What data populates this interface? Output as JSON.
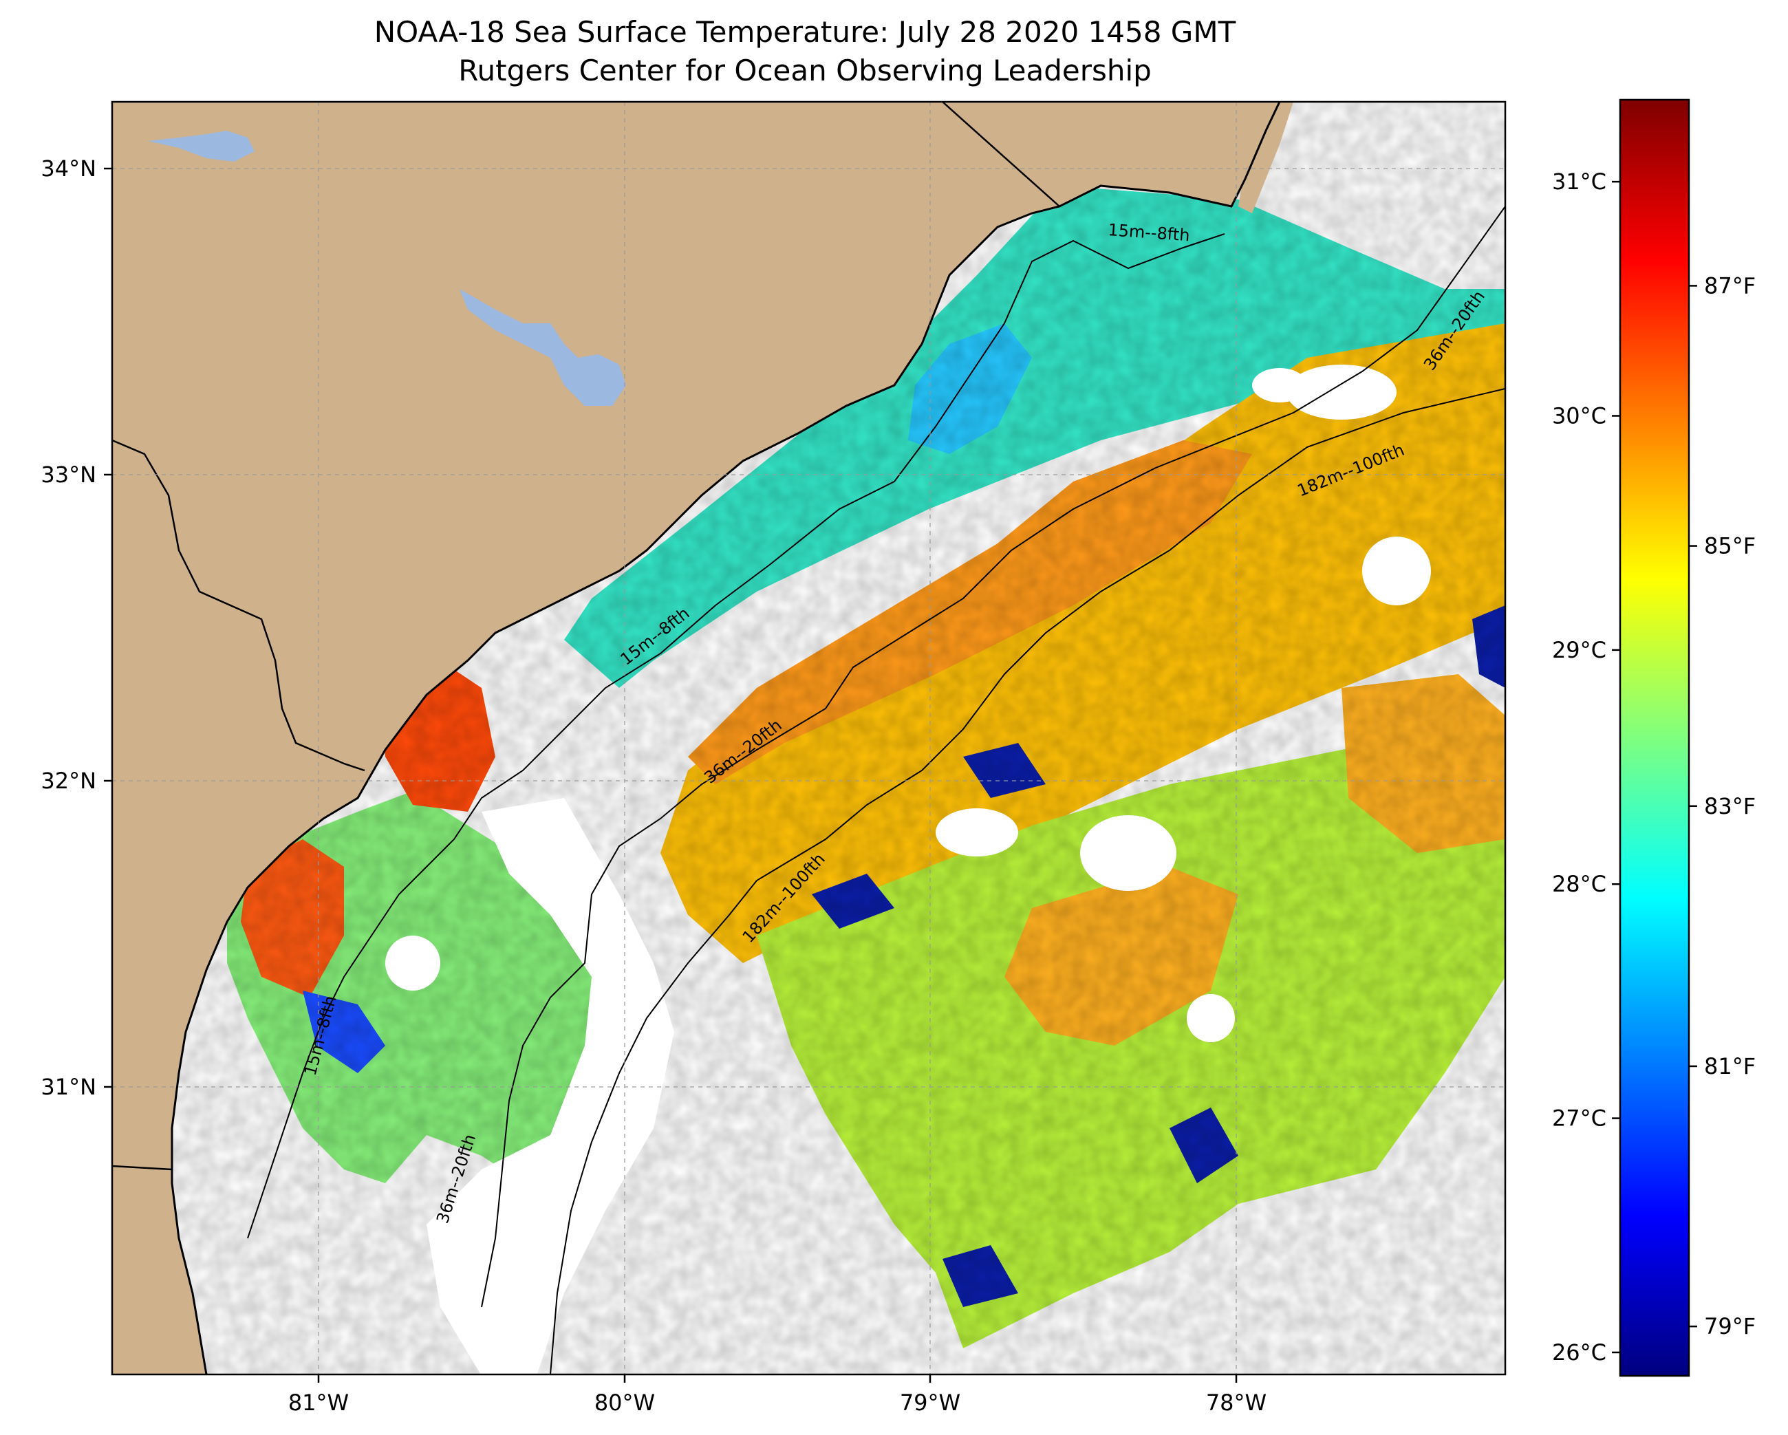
{
  "title": {
    "line1": "NOAA-18 Sea Surface Temperature: July 28 2020 1458 GMT",
    "line2": "Rutgers Center for Ocean Observing Leadership"
  },
  "map": {
    "lon_range": [
      -81.67,
      -77.1
    ],
    "lat_range": [
      30.0,
      34.2
    ],
    "land_color": "#cfb18b",
    "lake_color": "#9bb8e0",
    "missing_data_color": "#ffffff",
    "grid": "dashed",
    "colormap": "jet",
    "lon_labels": [
      "81°W",
      "80°W",
      "79°W",
      "78°W"
    ],
    "lat_labels": [
      "34°N",
      "33°N",
      "32°N",
      "31°N"
    ],
    "contour_labels": [
      {
        "text": "15m--8fth",
        "near": "north"
      },
      {
        "text": "15m--8fth",
        "near": "middle"
      },
      {
        "text": "15m--8fth",
        "near": "south"
      },
      {
        "text": "36m--20fth",
        "near": "north"
      },
      {
        "text": "36m--20fth",
        "near": "middle"
      },
      {
        "text": "36m--20fth",
        "near": "south"
      },
      {
        "text": "182m--100fth",
        "near": "north"
      },
      {
        "text": "182m--100fth",
        "near": "south"
      }
    ]
  },
  "colorbar": {
    "vmin_c": 25.9,
    "vmax_c": 31.35,
    "celsius_labels": [
      "31°C",
      "30°C",
      "29°C",
      "28°C",
      "27°C",
      "26°C"
    ],
    "fahrenheit_labels": [
      "87°F",
      "85°F",
      "83°F",
      "81°F",
      "79°F"
    ],
    "colors": [
      "#00007f",
      "#0000ff",
      "#007fff",
      "#00ffff",
      "#7fff7f",
      "#ffff00",
      "#ff7f00",
      "#ff0000",
      "#7f0000"
    ]
  }
}
